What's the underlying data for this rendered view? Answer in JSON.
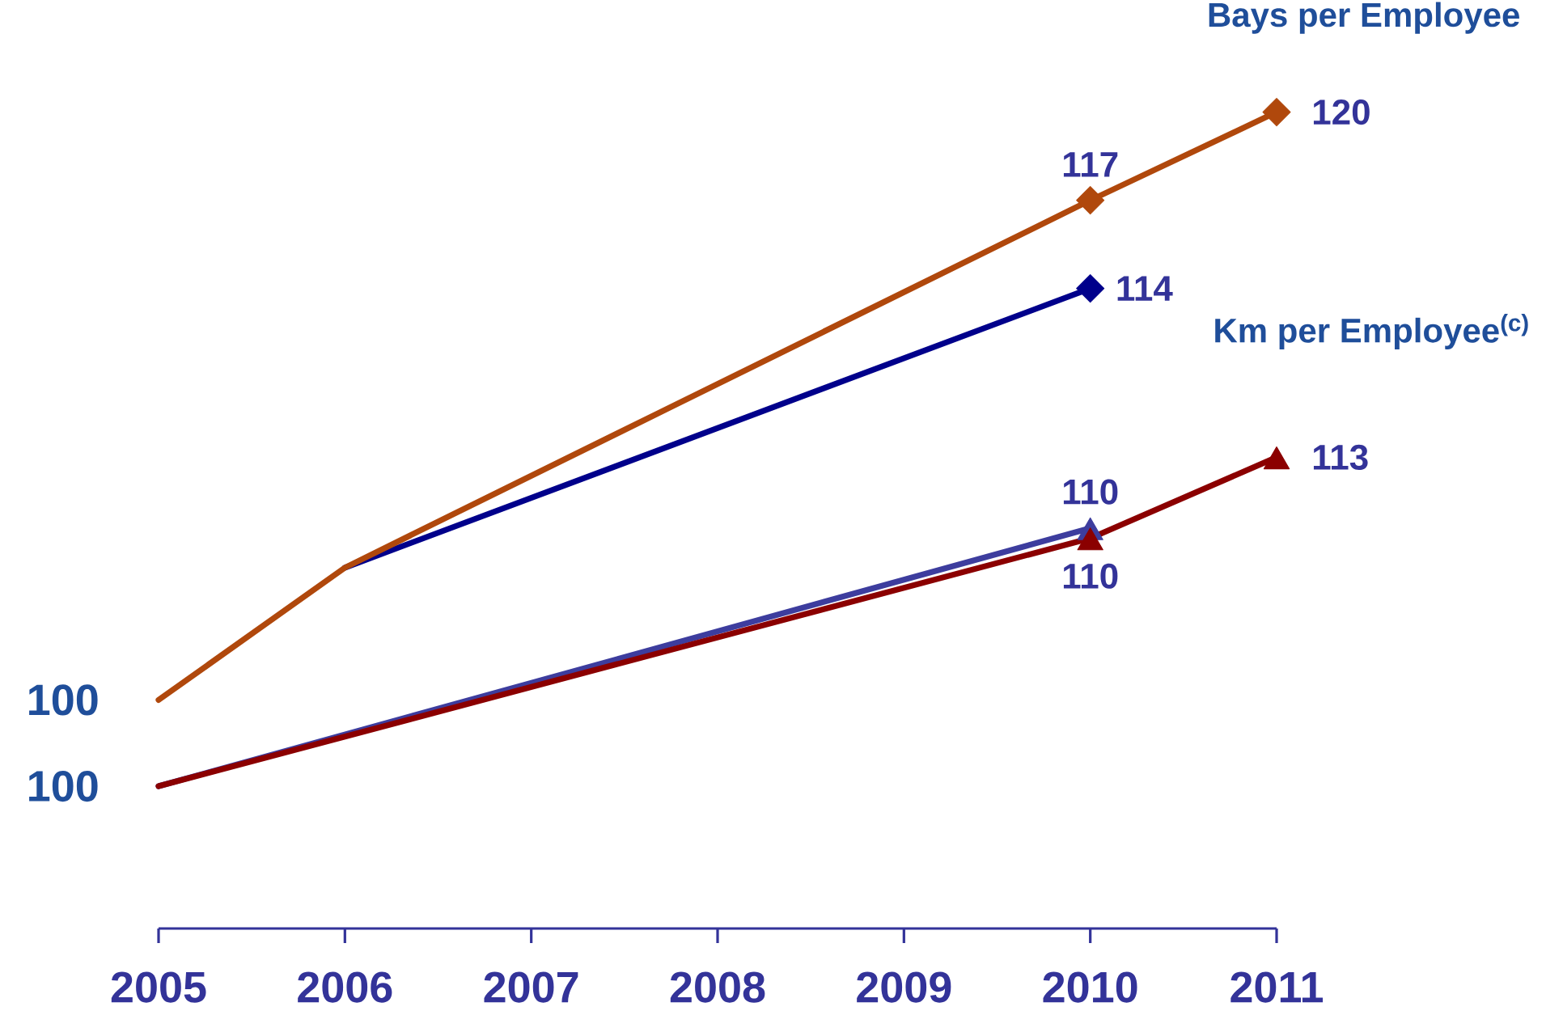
{
  "chart_data": [
    {
      "type": "line",
      "title": "Bays per Employee",
      "xlim": [
        2005,
        2011
      ],
      "tick_labels": false,
      "marker": "diamond",
      "annotations": [
        {
          "text": "100",
          "x": 2005,
          "y": 100
        }
      ],
      "series": [
        {
          "color": "#00008b",
          "x": [
            2006,
            2010
          ],
          "values": [
            104.5,
            114
          ],
          "value_labels": [
            null,
            "114"
          ]
        },
        {
          "color": "#b0480c",
          "x": [
            2005,
            2006,
            2010,
            2011
          ],
          "values": [
            100,
            104.5,
            117,
            120
          ],
          "value_labels": [
            null,
            null,
            "117",
            "120"
          ]
        }
      ]
    },
    {
      "type": "line",
      "title": "Km per Employee$^{(c)}$",
      "xlim": [
        2005,
        2011
      ],
      "xticks": [
        2005,
        2006,
        2007,
        2008,
        2009,
        2010,
        2011
      ],
      "tick_labels": "x",
      "marker": "triangle",
      "annotations": [
        {
          "text": "100",
          "x": 2005,
          "y": 100
        }
      ],
      "series": [
        {
          "color": "#3d3d9e",
          "x": [
            2005,
            2010
          ],
          "values": [
            100,
            110.2
          ],
          "value_labels": [
            null,
            "110"
          ]
        },
        {
          "color": "#8b0000",
          "x": [
            2005,
            2010,
            2011
          ],
          "values": [
            100,
            109.8,
            113
          ],
          "value_labels": [
            null,
            "110",
            "113"
          ]
        }
      ]
    }
  ]
}
